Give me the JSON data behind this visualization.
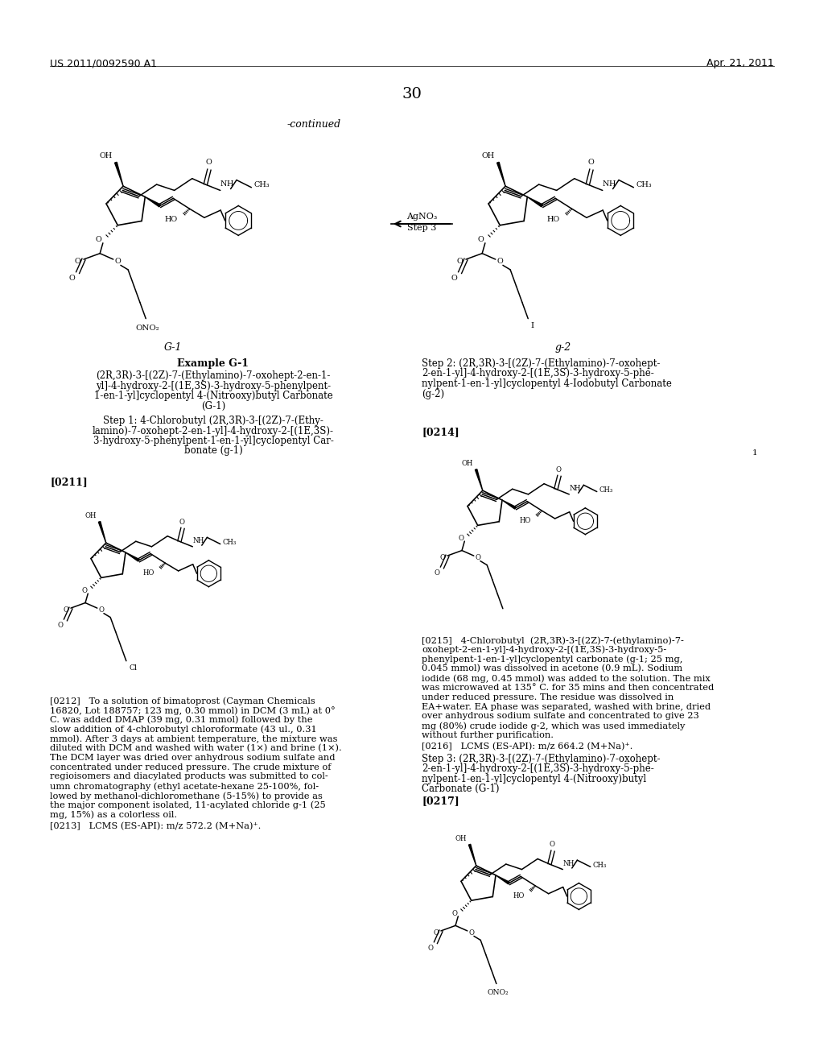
{
  "background_color": "#ffffff",
  "header_left": "US 2011/0092590 A1",
  "header_right": "Apr. 21, 2011",
  "page_number": "30",
  "continued_label": "-continued",
  "arrow_label_top": "AgNO₃",
  "arrow_label_bot": "Step 3",
  "label_G1": "G-1",
  "label_g2": "g-2",
  "example_header": "Example G-1",
  "compound_G1_name_lines": [
    "(2R,3R)-3-[(2Z)-7-(Ethylamino)-7-oxohept-2-en-1-",
    "yl]-4-hydroxy-2-[(1E,3S)-3-hydroxy-5-phenylpent-",
    "1-en-1-yl]cyclopentyl 4-(Nitrooxy)butyl Carbonate",
    "(G-1)"
  ],
  "step1_lines": [
    "Step 1: 4-Chlorobutyl (2R,3R)-3-[(2Z)-7-(Ethy-",
    "lamino)-7-oxohept-2-en-1-yl]-4-hydroxy-2-[(1E,3S)-",
    "3-hydroxy-5-phenylpent-1-en-1-yl]cyclopentyl Car-",
    "bonate (g-1)"
  ],
  "para0211": "[0211]",
  "step2_lines": [
    "Step 2: (2R,3R)-3-[(2Z)-7-(Ethylamino)-7-oxohept-",
    "2-en-1-yl]-4-hydroxy-2-[(1E,3S)-3-hydroxy-5-phe-",
    "nylpent-1-en-1-yl]cyclopentyl 4-Iodobutyl Carbonate",
    "(g-2)"
  ],
  "para0214": "[0214]",
  "label_I": "I",
  "para0212_lines": [
    "[0212]   To a solution of bimatoprost (Cayman Chemicals",
    "16820, Lot 188757; 123 mg, 0.30 mmol) in DCM (3 mL) at 0°",
    "C. was added DMAP (39 mg, 0.31 mmol) followed by the",
    "slow addition of 4-chlorobutyl chloroformate (43 ul., 0.31",
    "mmol). After 3 days at ambient temperature, the mixture was",
    "diluted with DCM and washed with water (1×) and brine (1×).",
    "The DCM layer was dried over anhydrous sodium sulfate and",
    "concentrated under reduced pressure. The crude mixture of",
    "regioisomers and diacylated products was submitted to col-",
    "umn chromatography (ethyl acetate-hexane 25-100%, fol-",
    "lowed by methanol-dichloromethane (5-15%) to provide as",
    "the major component isolated, 11-acylated chloride g-1 (25",
    "mg, 15%) as a colorless oil."
  ],
  "para0213": "[0213]   LCMS (ES-API): m/z 572.2 (M+Na)⁺.",
  "para0215_lines": [
    "[0215]   4-Chlorobutyl  (2R,3R)-3-[(2Z)-7-(ethylamino)-7-",
    "oxohept-2-en-1-yl]-4-hydroxy-2-[(1E,3S)-3-hydroxy-5-",
    "phenylpent-1-en-1-yl]cyclopentyl carbonate (g-1; 25 mg,",
    "0.045 mmol) was dissolved in acetone (0.9 mL). Sodium",
    "iodide (68 mg, 0.45 mmol) was added to the solution. The mix",
    "was microwaved at 135° C. for 35 mins and then concentrated",
    "under reduced pressure. The residue was dissolved in",
    "EA+water. EA phase was separated, washed with brine, dried",
    "over anhydrous sodium sulfate and concentrated to give 23",
    "mg (80%) crude iodide g-2, which was used immediately",
    "without further purification."
  ],
  "para0216": "[0216]   LCMS (ES-API): m/z 664.2 (M+Na)⁺.",
  "step3_lines": [
    "Step 3: (2R,3R)-3-[(2Z)-7-(Ethylamino)-7-oxohept-",
    "2-en-1-yl]-4-hydroxy-2-[(1E,3S)-3-hydroxy-5-phe-",
    "nylpent-1-en-1-yl]cyclopentyl 4-(Nitrooxy)butyl",
    "Carbonate (G-1)"
  ],
  "para0217": "[0217]"
}
